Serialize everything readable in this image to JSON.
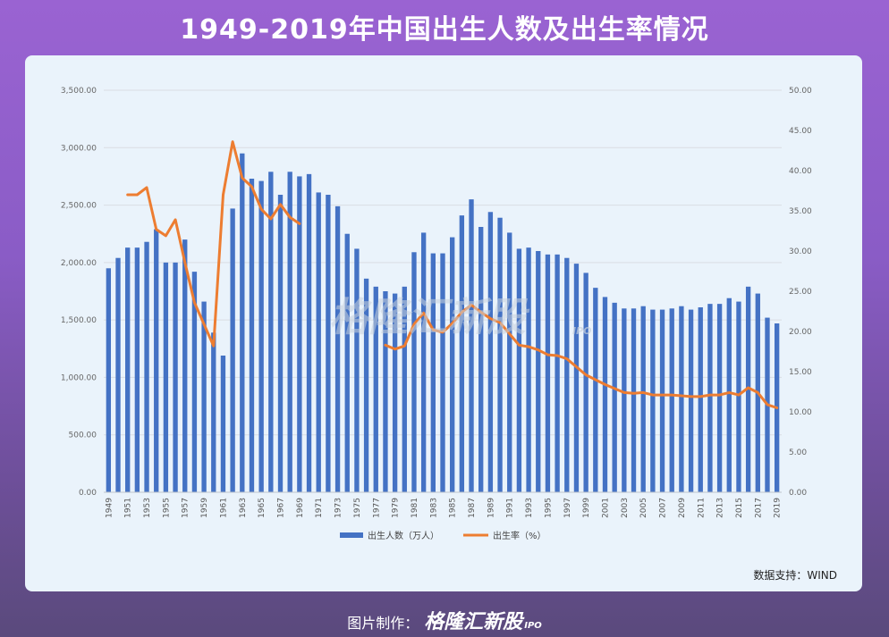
{
  "page": {
    "title": "1949-2019年中国出生人数及出生率情况",
    "source": "数据支持：WIND",
    "credit_label": "图片制作：",
    "credit_brand": "格隆汇新股",
    "credit_suffix": "IPO",
    "watermark": "格隆汇新股",
    "watermark_suffix": "IPO"
  },
  "colors": {
    "bar": "#4472c4",
    "line": "#ed7d31",
    "grid": "#d9dde3"
  },
  "chart_data": {
    "type": "bar",
    "title": "",
    "xlabel": "",
    "ylabel": "",
    "categories": [
      "1949",
      "1950",
      "1951",
      "1952",
      "1953",
      "1954",
      "1955",
      "1956",
      "1957",
      "1958",
      "1959",
      "1960",
      "1961",
      "1962",
      "1963",
      "1964",
      "1965",
      "1966",
      "1967",
      "1968",
      "1969",
      "1970",
      "1971",
      "1972",
      "1973",
      "1974",
      "1975",
      "1976",
      "1977",
      "1978",
      "1979",
      "1980",
      "1981",
      "1982",
      "1983",
      "1984",
      "1985",
      "1986",
      "1987",
      "1988",
      "1989",
      "1990",
      "1991",
      "1992",
      "1993",
      "1994",
      "1995",
      "1996",
      "1997",
      "1998",
      "1999",
      "2000",
      "2001",
      "2002",
      "2003",
      "2004",
      "2005",
      "2006",
      "2007",
      "2008",
      "2009",
      "2010",
      "2011",
      "2012",
      "2013",
      "2014",
      "2015",
      "2016",
      "2017",
      "2018",
      "2019"
    ],
    "x_tick_labels": [
      "1949",
      "1951",
      "1953",
      "1955",
      "1957",
      "1959",
      "1961",
      "1963",
      "1965",
      "1967",
      "1969",
      "1971",
      "1973",
      "1975",
      "1977",
      "1979",
      "1981",
      "1983",
      "1985",
      "1987",
      "1989",
      "1991",
      "1993",
      "1995",
      "1997",
      "1999",
      "2001",
      "2003",
      "2005",
      "2007",
      "2009",
      "2011",
      "2013",
      "2015",
      "2017",
      "2019"
    ],
    "y_left": {
      "min": 0,
      "max": 3500,
      "ticks": [
        "0.00",
        "500.00",
        "1,000.00",
        "1,500.00",
        "2,000.00",
        "2,500.00",
        "3,000.00",
        "3,500.00"
      ]
    },
    "y_right": {
      "min": 0,
      "max": 50,
      "ticks": [
        "0.00",
        "5.00",
        "10.00",
        "15.00",
        "20.00",
        "25.00",
        "30.00",
        "35.00",
        "40.00",
        "45.00",
        "50.00"
      ]
    },
    "grid": true,
    "legend_position": "bottom",
    "series": [
      {
        "name": "出生人数（万人）",
        "type": "bar",
        "axis": "left",
        "values": [
          1950,
          2040,
          2130,
          2130,
          2180,
          2290,
          2000,
          2000,
          2200,
          1920,
          1660,
          1390,
          1190,
          2470,
          2950,
          2730,
          2710,
          2790,
          2590,
          2790,
          2750,
          2770,
          2610,
          2590,
          2490,
          2250,
          2120,
          1860,
          1790,
          1750,
          1730,
          1790,
          2090,
          2260,
          2080,
          2080,
          2220,
          2410,
          2550,
          2310,
          2440,
          2390,
          2260,
          2120,
          2130,
          2100,
          2070,
          2070,
          2040,
          1990,
          1910,
          1780,
          1700,
          1650,
          1600,
          1600,
          1620,
          1590,
          1590,
          1600,
          1620,
          1590,
          1610,
          1640,
          1640,
          1690,
          1660,
          1790,
          1730,
          1520,
          1470
        ]
      },
      {
        "name": "出生率（%）",
        "type": "line",
        "axis": "right",
        "values": [
          null,
          null,
          37.0,
          37.0,
          37.9,
          32.7,
          31.9,
          33.9,
          28.6,
          23.6,
          20.9,
          18.2,
          37.0,
          43.6,
          39.1,
          38.0,
          35.2,
          34.0,
          35.8,
          34.2,
          33.4,
          null,
          null,
          null,
          null,
          null,
          null,
          null,
          null,
          18.3,
          17.8,
          18.2,
          20.9,
          22.3,
          20.2,
          19.9,
          21.0,
          22.4,
          23.3,
          22.4,
          21.6,
          21.1,
          19.7,
          18.3,
          18.1,
          17.7,
          17.1,
          17.0,
          16.6,
          15.6,
          14.6,
          14.0,
          13.4,
          12.9,
          12.4,
          12.3,
          12.4,
          12.1,
          12.1,
          12.1,
          12.0,
          11.9,
          11.9,
          12.1,
          12.1,
          12.4,
          12.1,
          13.0,
          12.4,
          10.9,
          10.5
        ]
      }
    ]
  }
}
